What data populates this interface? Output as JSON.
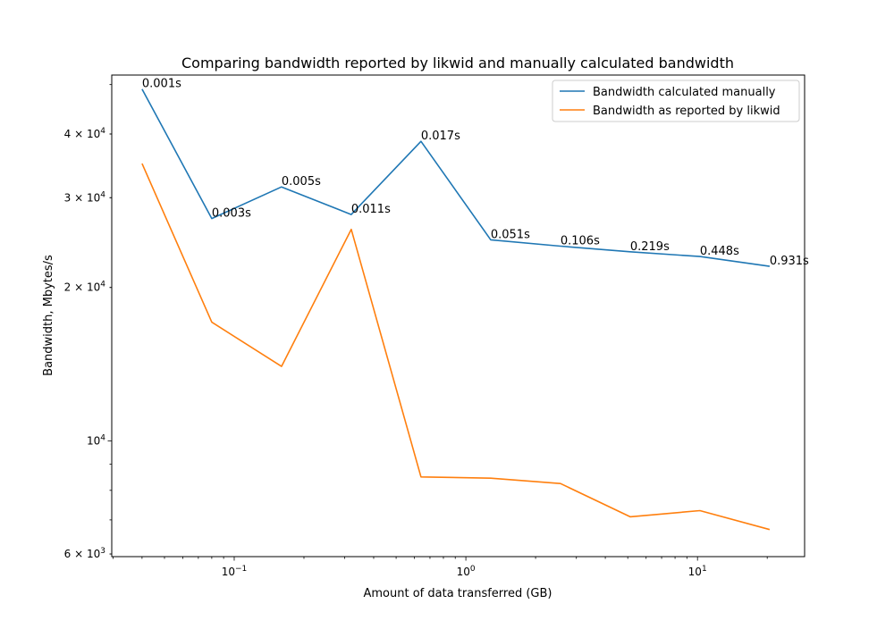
{
  "chart_data": {
    "type": "line",
    "title": "Comparing bandwidth reported by likwid and manually calculated bandwidth",
    "xlabel": "Amount of data transferred (GB)",
    "ylabel": "Bandwidth, Mbytes/s",
    "xscale": "log",
    "yscale": "log",
    "xlim": [
      0.0296,
      29.0
    ],
    "ylim": [
      5930,
      52200
    ],
    "grid": false,
    "legend_position": "top-right",
    "x": [
      0.04,
      0.08,
      0.16,
      0.32,
      0.64,
      1.28,
      2.56,
      5.12,
      10.24,
      20.48
    ],
    "series": [
      {
        "name": "Bandwidth calculated manually",
        "color": "#1f77b4",
        "values": [
          49000,
          27300,
          31500,
          27800,
          38700,
          24800,
          24100,
          23500,
          23000,
          22000
        ],
        "point_labels": [
          "0.001s",
          "0.003s",
          "0.005s",
          "0.011s",
          "0.017s",
          "0.051s",
          "0.106s",
          "0.219s",
          "0.448s",
          "0.931s"
        ]
      },
      {
        "name": "Bandwidth as reported by likwid",
        "color": "#ff7f0e",
        "values": [
          35000,
          17100,
          14000,
          26000,
          8500,
          8450,
          8250,
          7100,
          7300,
          6700
        ]
      }
    ],
    "x_ticks": [
      {
        "value": 0.1,
        "base": "10",
        "exp": "−1"
      },
      {
        "value": 1,
        "base": "10",
        "exp": "0"
      },
      {
        "value": 10,
        "base": "10",
        "exp": "1"
      }
    ],
    "y_ticks": [
      {
        "value": 6000,
        "mant": "6 × ",
        "base": "10",
        "exp": "3"
      },
      {
        "value": 10000,
        "mant": "",
        "base": "10",
        "exp": "4"
      },
      {
        "value": 20000,
        "mant": "2 × ",
        "base": "10",
        "exp": "4"
      },
      {
        "value": 30000,
        "mant": "3 × ",
        "base": "10",
        "exp": "4"
      },
      {
        "value": 40000,
        "mant": "4 × ",
        "base": "10",
        "exp": "4"
      }
    ]
  }
}
